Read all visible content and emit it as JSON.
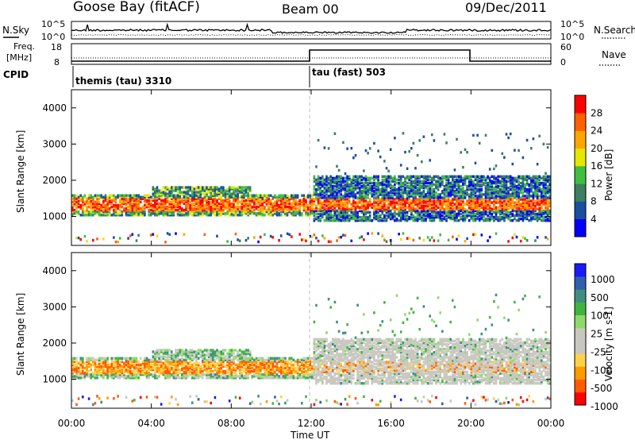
{
  "header": {
    "station": "Goose Bay (fitACF)",
    "beam": "Beam 00",
    "date": "09/Dec/2011"
  },
  "top_strip": {
    "left_label": "N.Sky",
    "left_ticks": [
      "10^5",
      "10^0"
    ],
    "right_label": "N.Search",
    "right_ticks": [
      "10^5",
      "10^0"
    ]
  },
  "freq_strip": {
    "left_label_line1": "Freq.",
    "left_label_line2": "[MHz]",
    "left_ticks": [
      "18",
      "8"
    ],
    "right_label": "Nave",
    "right_ticks": [
      "60",
      "0"
    ]
  },
  "cpid_strip": {
    "label": "CPID",
    "mode1": "themis (tau) 3310",
    "mode2": "tau (fast) 503"
  },
  "colors": {
    "power_scale": [
      "#0000ff",
      "#1a4f9f",
      "#3b7f5f",
      "#3fbf3f",
      "#e6e600",
      "#ffa500",
      "#ff6000",
      "#ff0000"
    ],
    "velocity_scale": [
      "#ff0000",
      "#ff5a00",
      "#ff9a00",
      "#ffd24a",
      "#c8c8c0",
      "#c8c8c0",
      "#8fd96a",
      "#3fb53f",
      "#3f8f7f",
      "#2f5fae",
      "#1a1aff"
    ],
    "ground_scatter": "#c8c8c0"
  },
  "chart_data": [
    {
      "type": "line",
      "name": "noise-and-frequency",
      "x": [
        "00:00",
        "04:00",
        "08:00",
        "12:00",
        "16:00",
        "20:00",
        "24:00"
      ],
      "cpid_change_x": "12:00",
      "nave_high_range": [
        "12:00",
        "20:00"
      ]
    },
    {
      "type": "heatmap",
      "name": "power",
      "ylabel": "Slant Range [km]",
      "yticks": [
        "1000",
        "2000",
        "3000",
        "4000"
      ],
      "ylim": [
        200,
        4500
      ],
      "xlim": [
        "00:00",
        "24:00"
      ],
      "colorbar_label": "Power [dB]",
      "colorbar_ticks": [
        "4",
        "8",
        "12",
        "16",
        "20",
        "24",
        "28"
      ],
      "colorbar_range": [
        0,
        32
      ]
    },
    {
      "type": "heatmap",
      "name": "velocity",
      "ylabel": "Slant Range [km]",
      "yticks": [
        "1000",
        "2000",
        "3000",
        "4000"
      ],
      "ylim": [
        200,
        4500
      ],
      "xlim": [
        "00:00",
        "24:00"
      ],
      "colorbar_label": "Velocity [m s-1]",
      "colorbar_ticks": [
        "1000",
        "500",
        "100",
        "25",
        "-25",
        "-100",
        "-500",
        "-1000"
      ]
    }
  ],
  "xaxis": {
    "ticks": [
      "00:00",
      "04:00",
      "08:00",
      "12:00",
      "16:00",
      "20:00",
      "00:00"
    ],
    "label": "Time UT"
  }
}
